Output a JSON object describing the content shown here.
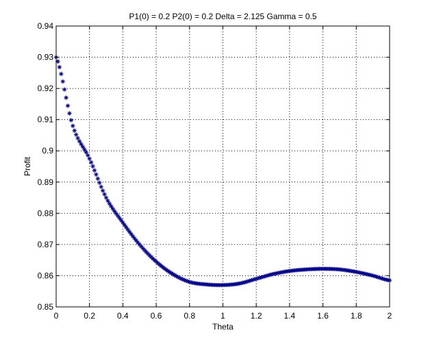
{
  "chart_data": {
    "type": "scatter",
    "title": "P1(0) = 0.2 P2(0) = 0.2 Delta = 2.125 Gamma = 0.5",
    "xlabel": "Theta",
    "ylabel": "Profit",
    "xlim": [
      0,
      2
    ],
    "ylim": [
      0.85,
      0.94
    ],
    "xticks": [
      "0",
      "0.2",
      "0.4",
      "0.6",
      "0.8",
      "1",
      "1.2",
      "1.4",
      "1.6",
      "1.8",
      "2"
    ],
    "yticks": [
      "0.85",
      "0.86",
      "0.87",
      "0.88",
      "0.89",
      "0.9",
      "0.91",
      "0.92",
      "0.93",
      "0.94"
    ],
    "grid": true,
    "marker": "*",
    "series": [
      {
        "color": "#00008B",
        "x": [
          0,
          0.1,
          0.2,
          0.3,
          0.4,
          0.5,
          0.6,
          0.7,
          0.8,
          0.9,
          1.0,
          1.1,
          1.2,
          1.3,
          1.4,
          1.5,
          1.6,
          1.7,
          1.8,
          1.9,
          2.0
        ],
        "y": [
          0.93,
          0.908,
          0.8975,
          0.885,
          0.877,
          0.87,
          0.8645,
          0.8605,
          0.858,
          0.8572,
          0.857,
          0.8575,
          0.859,
          0.8605,
          0.8615,
          0.862,
          0.8622,
          0.862,
          0.8612,
          0.86,
          0.8585
        ]
      }
    ]
  }
}
